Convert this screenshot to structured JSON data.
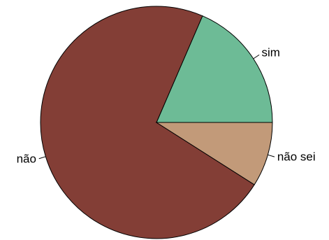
{
  "chart_data": {
    "type": "pie",
    "title": "",
    "start_angle_deg": 0,
    "direction": "counterclockwise",
    "slices": [
      {
        "label": "sim",
        "value": 18.5,
        "color": "#6dbb96"
      },
      {
        "label": "não",
        "value": 72.5,
        "color": "#833e36"
      },
      {
        "label": "não sei",
        "value": 9.0,
        "color": "#c29a79"
      }
    ]
  }
}
